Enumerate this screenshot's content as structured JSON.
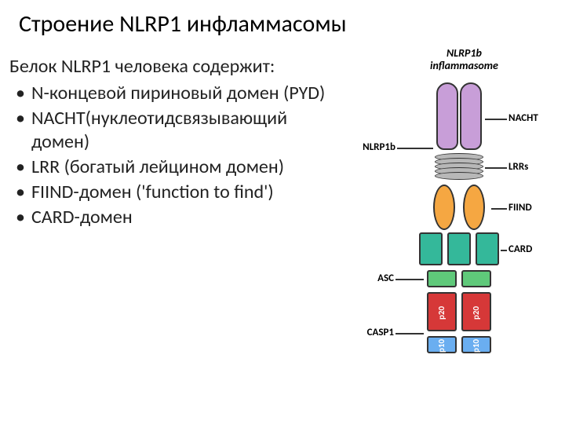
{
  "title": "Строение NLRP1 инфламмасомы",
  "intro": "Белок NLRP1 человека содержит:",
  "bullets": [
    "N-концевой пириновый домен (PYD)",
    "NACHT(нуклеотидсвязывающий домен)",
    "LRR (богатый лейцином домен)",
    "FIIND-домен ('function to find')",
    "CARD-домен"
  ],
  "diagram": {
    "title_line1": "NLRP1b",
    "title_line2": "inflammasome",
    "labels": {
      "nlrp1b": "NLRP1b",
      "asc": "ASC",
      "casp1": "CASP1",
      "nacht": "NACHT",
      "lrrs": "LRRs",
      "fiind": "FIIND",
      "card": "CARD"
    },
    "internal": {
      "p20": "p20",
      "p10": "p10"
    },
    "colors": {
      "nacht": "#c89ed8",
      "lrr": "#b8b8b8",
      "fiind": "#f5a742",
      "card": "#34b89a",
      "asc": "#5fc97a",
      "p20": "#d63838",
      "p10": "#6aaef0",
      "stroke": "#333333",
      "text": "#000000"
    },
    "counts": {
      "lrr_discs": 5,
      "card_boxes": 3
    }
  }
}
